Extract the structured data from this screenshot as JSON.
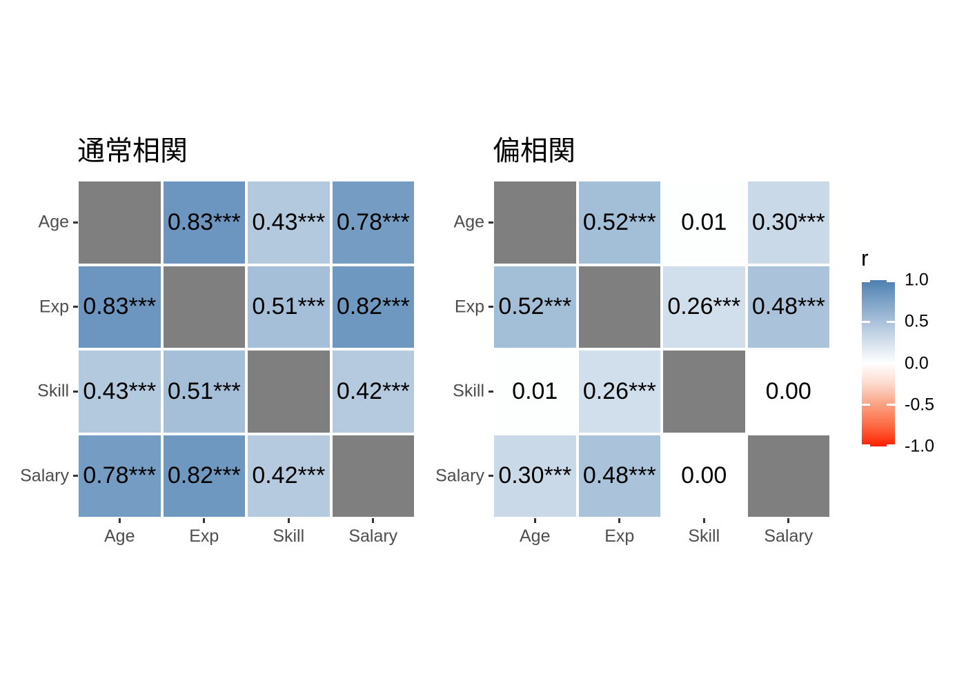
{
  "page": {
    "background": "#FFFFFF"
  },
  "legend": {
    "title": "r",
    "tick_labels": [
      "1.0",
      "0.5",
      "0.0",
      "-0.5",
      "-1.0"
    ],
    "tick_values": [
      1.0,
      0.5,
      0.0,
      -0.5,
      -1.0
    ],
    "range": [
      -1.0,
      1.0
    ],
    "position": "right",
    "colors": {
      "high": "#4E80B2",
      "mid": "#FFFFFF",
      "low": "#FF2000"
    }
  },
  "chart_data": [
    {
      "type": "heatmap",
      "title": "通常相関",
      "x_categories": [
        "Age",
        "Exp",
        "Skill",
        "Salary"
      ],
      "y_categories": [
        "Age",
        "Exp",
        "Skill",
        "Salary"
      ],
      "legend_title": "r",
      "value_range": [
        -1.0,
        1.0
      ],
      "grid": false,
      "color_scale": {
        "low": -1.0,
        "mid": 0.0,
        "high": 1.0,
        "low_color": "#FF2000",
        "mid_color": "#FFFFFF",
        "high_color": "#4E80B2",
        "diagonal_color": "#7F7F7F"
      },
      "cells": [
        [
          {
            "diagonal": true
          },
          {
            "value": 0.83,
            "label": "0.83***",
            "fill": "#6C96BF"
          },
          {
            "value": 0.43,
            "label": "0.43***",
            "fill": "#B3C9DE"
          },
          {
            "value": 0.78,
            "label": "0.78***",
            "fill": "#759DC3"
          }
        ],
        [
          {
            "value": 0.83,
            "label": "0.83***",
            "fill": "#6C96BF"
          },
          {
            "diagonal": true
          },
          {
            "value": 0.51,
            "label": "0.51***",
            "fill": "#A5BFD8"
          },
          {
            "value": 0.82,
            "label": "0.82***",
            "fill": "#6E98C0"
          }
        ],
        [
          {
            "value": 0.43,
            "label": "0.43***",
            "fill": "#B3C9DE"
          },
          {
            "value": 0.51,
            "label": "0.51***",
            "fill": "#A5BFD8"
          },
          {
            "diagonal": true
          },
          {
            "value": 0.42,
            "label": "0.42***",
            "fill": "#B5CADF"
          }
        ],
        [
          {
            "value": 0.78,
            "label": "0.78***",
            "fill": "#759DC3"
          },
          {
            "value": 0.82,
            "label": "0.82***",
            "fill": "#6E98C0"
          },
          {
            "value": 0.42,
            "label": "0.42***",
            "fill": "#B5CADF"
          },
          {
            "diagonal": true
          }
        ]
      ]
    },
    {
      "type": "heatmap",
      "title": "偏相関",
      "x_categories": [
        "Age",
        "Exp",
        "Skill",
        "Salary"
      ],
      "y_categories": [
        "Age",
        "Exp",
        "Skill",
        "Salary"
      ],
      "legend_title": "r",
      "value_range": [
        -1.0,
        1.0
      ],
      "grid": false,
      "color_scale": {
        "low": -1.0,
        "mid": 0.0,
        "high": 1.0,
        "low_color": "#FF2000",
        "mid_color": "#FFFFFF",
        "high_color": "#4E80B2",
        "diagonal_color": "#7F7F7F"
      },
      "cells": [
        [
          {
            "diagonal": true
          },
          {
            "value": 0.52,
            "label": "0.52***",
            "fill": "#A3BED7"
          },
          {
            "value": 0.01,
            "label": "0.01",
            "fill": "#FDFEFE"
          },
          {
            "value": 0.3,
            "label": "0.30***",
            "fill": "#CAD9E8"
          }
        ],
        [
          {
            "value": 0.52,
            "label": "0.52***",
            "fill": "#A3BED7"
          },
          {
            "diagonal": true
          },
          {
            "value": 0.26,
            "label": "0.26***",
            "fill": "#D1DEEB"
          },
          {
            "value": 0.48,
            "label": "0.48***",
            "fill": "#AAC3DA"
          }
        ],
        [
          {
            "value": 0.01,
            "label": "0.01",
            "fill": "#FDFEFE"
          },
          {
            "value": 0.26,
            "label": "0.26***",
            "fill": "#D1DEEB"
          },
          {
            "diagonal": true
          },
          {
            "value": 0.0,
            "label": "0.00",
            "fill": "#FFFFFF"
          }
        ],
        [
          {
            "value": 0.3,
            "label": "0.30***",
            "fill": "#CAD9E8"
          },
          {
            "value": 0.48,
            "label": "0.48***",
            "fill": "#AAC3DA"
          },
          {
            "value": 0.0,
            "label": "0.00",
            "fill": "#FFFFFF"
          },
          {
            "diagonal": true
          }
        ]
      ]
    }
  ]
}
